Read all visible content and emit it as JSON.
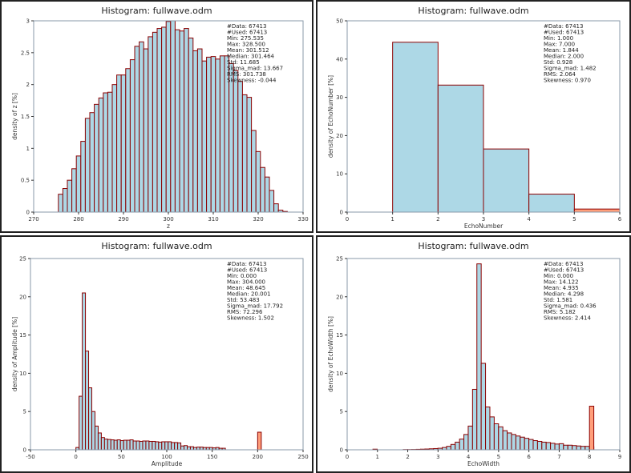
{
  "colors": {
    "bar_fill": "#add8e6",
    "bar_stroke": "#8b0000",
    "overflow_fill": "#ff9e7a",
    "axis": "#8899aa"
  },
  "chart_data": [
    {
      "type": "bar",
      "title": "Histogram: fullwave.odm",
      "xlabel": "z",
      "ylabel": "density of z [%]",
      "xlim": [
        270,
        330
      ],
      "ylim": [
        0,
        3
      ],
      "xticks": [
        "270",
        "280",
        "290",
        "300",
        "310",
        "320",
        "330"
      ],
      "yticks": [
        "0",
        "0.5",
        "1",
        "1.5",
        "2",
        "2.5",
        "3"
      ],
      "bin_start": 275.5,
      "bin_width": 1.0,
      "values": [
        0.28,
        0.37,
        0.5,
        0.68,
        0.88,
        1.11,
        1.47,
        1.56,
        1.69,
        1.79,
        1.87,
        1.88,
        2.0,
        2.15,
        2.15,
        2.25,
        2.39,
        2.6,
        2.67,
        2.56,
        2.75,
        2.82,
        2.88,
        2.9,
        2.99,
        3.0,
        2.86,
        2.84,
        2.88,
        2.73,
        2.53,
        2.56,
        2.37,
        2.43,
        2.44,
        2.4,
        2.45,
        2.45,
        2.33,
        2.22,
        2.05,
        1.84,
        1.8,
        1.28,
        0.95,
        0.7,
        0.55,
        0.34,
        0.13,
        0.03,
        0.01
      ],
      "overflow": [],
      "stats": [
        "#Data: 67413",
        "#Used: 67413",
        "Min: 275.535",
        "Max: 328.500",
        "Mean: 301.512",
        "Median: 301.464",
        "Std: 11.685",
        "Sigma_mad: 13.667",
        "RMS: 301.738",
        "Skewness: -0.044"
      ]
    },
    {
      "type": "bar",
      "title": "Histogram: fullwave.odm",
      "xlabel": "EchoNumber",
      "ylabel": "density of EchoNumber [%]",
      "xlim": [
        0,
        6
      ],
      "ylim": [
        0,
        50
      ],
      "xticks": [
        "0",
        "1",
        "2",
        "3",
        "4",
        "5",
        "6"
      ],
      "yticks": [
        "0",
        "10",
        "20",
        "30",
        "40",
        "50"
      ],
      "bin_start": 1,
      "bin_width": 1,
      "values": [
        44.4,
        33.2,
        16.5,
        4.7
      ],
      "overflow": [
        {
          "x": 5,
          "width": 1,
          "value": 0.8
        }
      ],
      "stats": [
        "#Data: 67413",
        "#Used: 67413",
        "Min: 1.000",
        "Max: 7.000",
        "Mean: 1.844",
        "Median: 2.000",
        "Std: 0.928",
        "Sigma_mad: 1.482",
        "RMS: 2.064",
        "Skewness: 0.970"
      ]
    },
    {
      "type": "bar",
      "title": "Histogram: fullwave.odm",
      "xlabel": "Amplitude",
      "ylabel": "density of Amplitude [%]",
      "xlim": [
        -50,
        250
      ],
      "ylim": [
        0,
        25
      ],
      "xticks": [
        "-50",
        "0",
        "50",
        "100",
        "150",
        "200",
        "250"
      ],
      "yticks": [
        "0",
        "5",
        "10",
        "15",
        "20",
        "25"
      ],
      "bin_start": 0,
      "bin_width": 3.5,
      "values": [
        0.3,
        7.0,
        20.5,
        12.9,
        8.1,
        5.0,
        3.1,
        2.2,
        1.6,
        1.4,
        1.35,
        1.3,
        1.25,
        1.3,
        1.2,
        1.25,
        1.25,
        1.3,
        1.15,
        1.15,
        1.1,
        1.15,
        1.15,
        1.1,
        1.1,
        1.05,
        1.0,
        1.05,
        1.05,
        1.05,
        0.95,
        0.95,
        0.9,
        0.5,
        0.55,
        0.4,
        0.4,
        0.3,
        0.35,
        0.35,
        0.3,
        0.3,
        0.3,
        0.25,
        0.3,
        0.2,
        0.2
      ],
      "overflow": [
        {
          "x": 200,
          "width": 4,
          "value": 2.3
        }
      ],
      "stats": [
        "#Data: 67413",
        "#Used: 67413",
        "Min: 0.000",
        "Max: 304.000",
        "Mean: 48.645",
        "Median: 20.001",
        "Std: 53.483",
        "Sigma_mad: 17.792",
        "RMS: 72.296",
        "Skewness: 1.502"
      ]
    },
    {
      "type": "bar",
      "title": "Histogram: fullwave.odm",
      "xlabel": "EchoWidth",
      "ylabel": "density of EchoWidth [%]",
      "xlim": [
        0,
        9
      ],
      "ylim": [
        0,
        25
      ],
      "xticks": [
        "0",
        "1",
        "2",
        "3",
        "4",
        "5",
        "6",
        "7",
        "8",
        "9"
      ],
      "yticks": [
        "0",
        "5",
        "10",
        "15",
        "20",
        "25"
      ],
      "bin_start": 0.85,
      "bin_width": 0.143,
      "values": [
        0.08,
        0.0,
        0.0,
        0.0,
        0.0,
        0.0,
        0.0,
        0.03,
        0.03,
        0.04,
        0.06,
        0.08,
        0.1,
        0.13,
        0.16,
        0.2,
        0.3,
        0.45,
        0.7,
        1.0,
        1.4,
        2.0,
        3.1,
        7.9,
        24.3,
        11.3,
        5.6,
        4.3,
        3.4,
        3.0,
        2.5,
        2.2,
        2.0,
        1.8,
        1.65,
        1.5,
        1.35,
        1.2,
        1.1,
        1.0,
        0.95,
        0.85,
        0.75,
        0.8,
        0.6,
        0.6,
        0.55,
        0.5,
        0.45,
        0.45,
        0.4
      ],
      "overflow": [
        {
          "x": 8.0,
          "width": 0.143,
          "value": 5.7
        }
      ],
      "stats": [
        "#Data: 67413",
        "#Used: 67413",
        "Min: 0.000",
        "Max: 14.122",
        "Mean: 4.935",
        "Median: 4.298",
        "Std: 1.581",
        "Sigma_mad: 0.436",
        "RMS: 5.182",
        "Skewness: 2.414"
      ]
    }
  ]
}
